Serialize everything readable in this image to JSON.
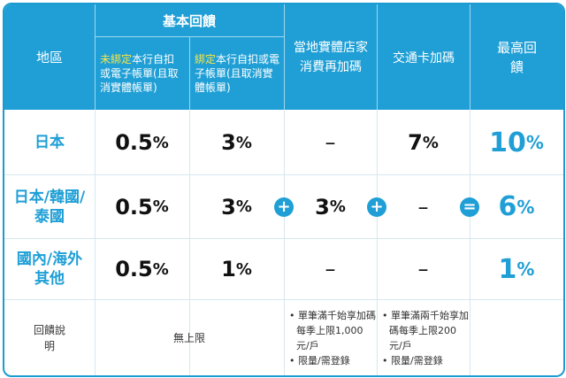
{
  "header": {
    "region": "地區",
    "basic_group": "基本回饋",
    "unbound_highlight": "未綁定",
    "unbound_rest": "本行自扣或電子帳單(且取消實體帳單)",
    "bound_highlight": "綁定",
    "bound_rest": "本行自扣或電子帳單(且取消實體帳單)",
    "local_store": "當地實體店家消費再加碼",
    "transit": "交通卡加碼",
    "max": "最高回饋"
  },
  "rows": [
    {
      "region": "日本",
      "unbound": "0.5",
      "bound": "3",
      "local": "–",
      "transit": "7",
      "max": "10"
    },
    {
      "region": "日本/韓國/泰國",
      "unbound": "0.5",
      "bound": "3",
      "local": "3",
      "transit": "–",
      "max": "6"
    },
    {
      "region": "國內/海外其他",
      "unbound": "0.5",
      "bound": "1",
      "local": "–",
      "transit": "–",
      "max": "1"
    }
  ],
  "units": {
    "percent": "%"
  },
  "operators": {
    "plus": "+",
    "equals": "="
  },
  "notes": {
    "label": "回饋說明",
    "basic": "無上限",
    "local_1": "單筆滿千始享加碼每季上限1,000元/戶",
    "local_2": "限量/需登錄",
    "transit_1": "單筆滿兩千始享加碼每季上限200元/戶",
    "transit_2": "限量/需登錄"
  },
  "colors": {
    "accent": "#1f9fd6",
    "highlight": "#f7e64a",
    "text": "#111111"
  }
}
